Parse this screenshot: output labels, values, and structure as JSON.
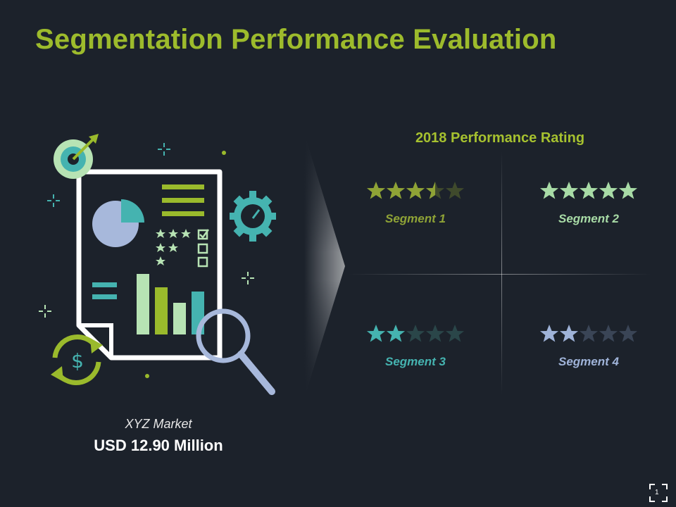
{
  "title": "Segmentation Performance Evaluation",
  "rating": {
    "title": "2018 Performance Rating",
    "max_stars": 5,
    "segments": [
      {
        "label": "Segment 1",
        "stars": 3.5,
        "color": "#8fa336",
        "dim_color": "#3f4a2c"
      },
      {
        "label": "Segment 2",
        "stars": 5,
        "color": "#a8dba6",
        "dim_color": "#3e5546"
      },
      {
        "label": "Segment 3",
        "stars": 2,
        "color": "#45b3b0",
        "dim_color": "#2a4649"
      },
      {
        "label": "Segment 4",
        "stars": 2,
        "color": "#9fb3d8",
        "dim_color": "#3a4556"
      }
    ]
  },
  "market": {
    "label": "XYZ Market",
    "value": "USD 12.90 Million"
  },
  "page_number": "1",
  "icons": [
    "target-icon",
    "gear-speedometer-icon",
    "dollar-cycle-icon",
    "magnifier-icon",
    "pie-chart-icon",
    "bar-chart-icon",
    "checklist-icon",
    "fullscreen-icon"
  ],
  "colors": {
    "background": "#1c222b",
    "title": "#9dbb2c",
    "green": "#9aba2c",
    "teal": "#45b3b0",
    "light_green": "#b7e3b4",
    "blue": "#a7b8db"
  }
}
